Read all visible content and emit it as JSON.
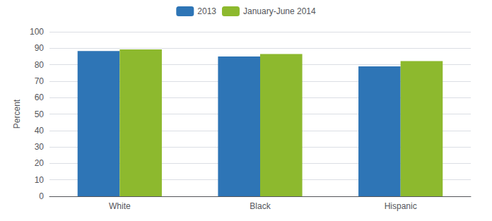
{
  "chart_data": {
    "type": "bar",
    "ylabel": "Percent",
    "categories": [
      "White",
      "Black",
      "Hispanic"
    ],
    "series": [
      {
        "name": "2013",
        "color": "#2E75B6",
        "values": [
          88.3,
          85.0,
          79.0
        ]
      },
      {
        "name": "January-June 2014",
        "color": "#8DB92E",
        "values": [
          89.3,
          86.5,
          82.2
        ]
      }
    ],
    "ylim": [
      0,
      100
    ],
    "yticks": [
      0,
      10,
      20,
      30,
      40,
      50,
      60,
      70,
      80,
      90,
      100
    ],
    "grid": true,
    "legend": "top"
  }
}
